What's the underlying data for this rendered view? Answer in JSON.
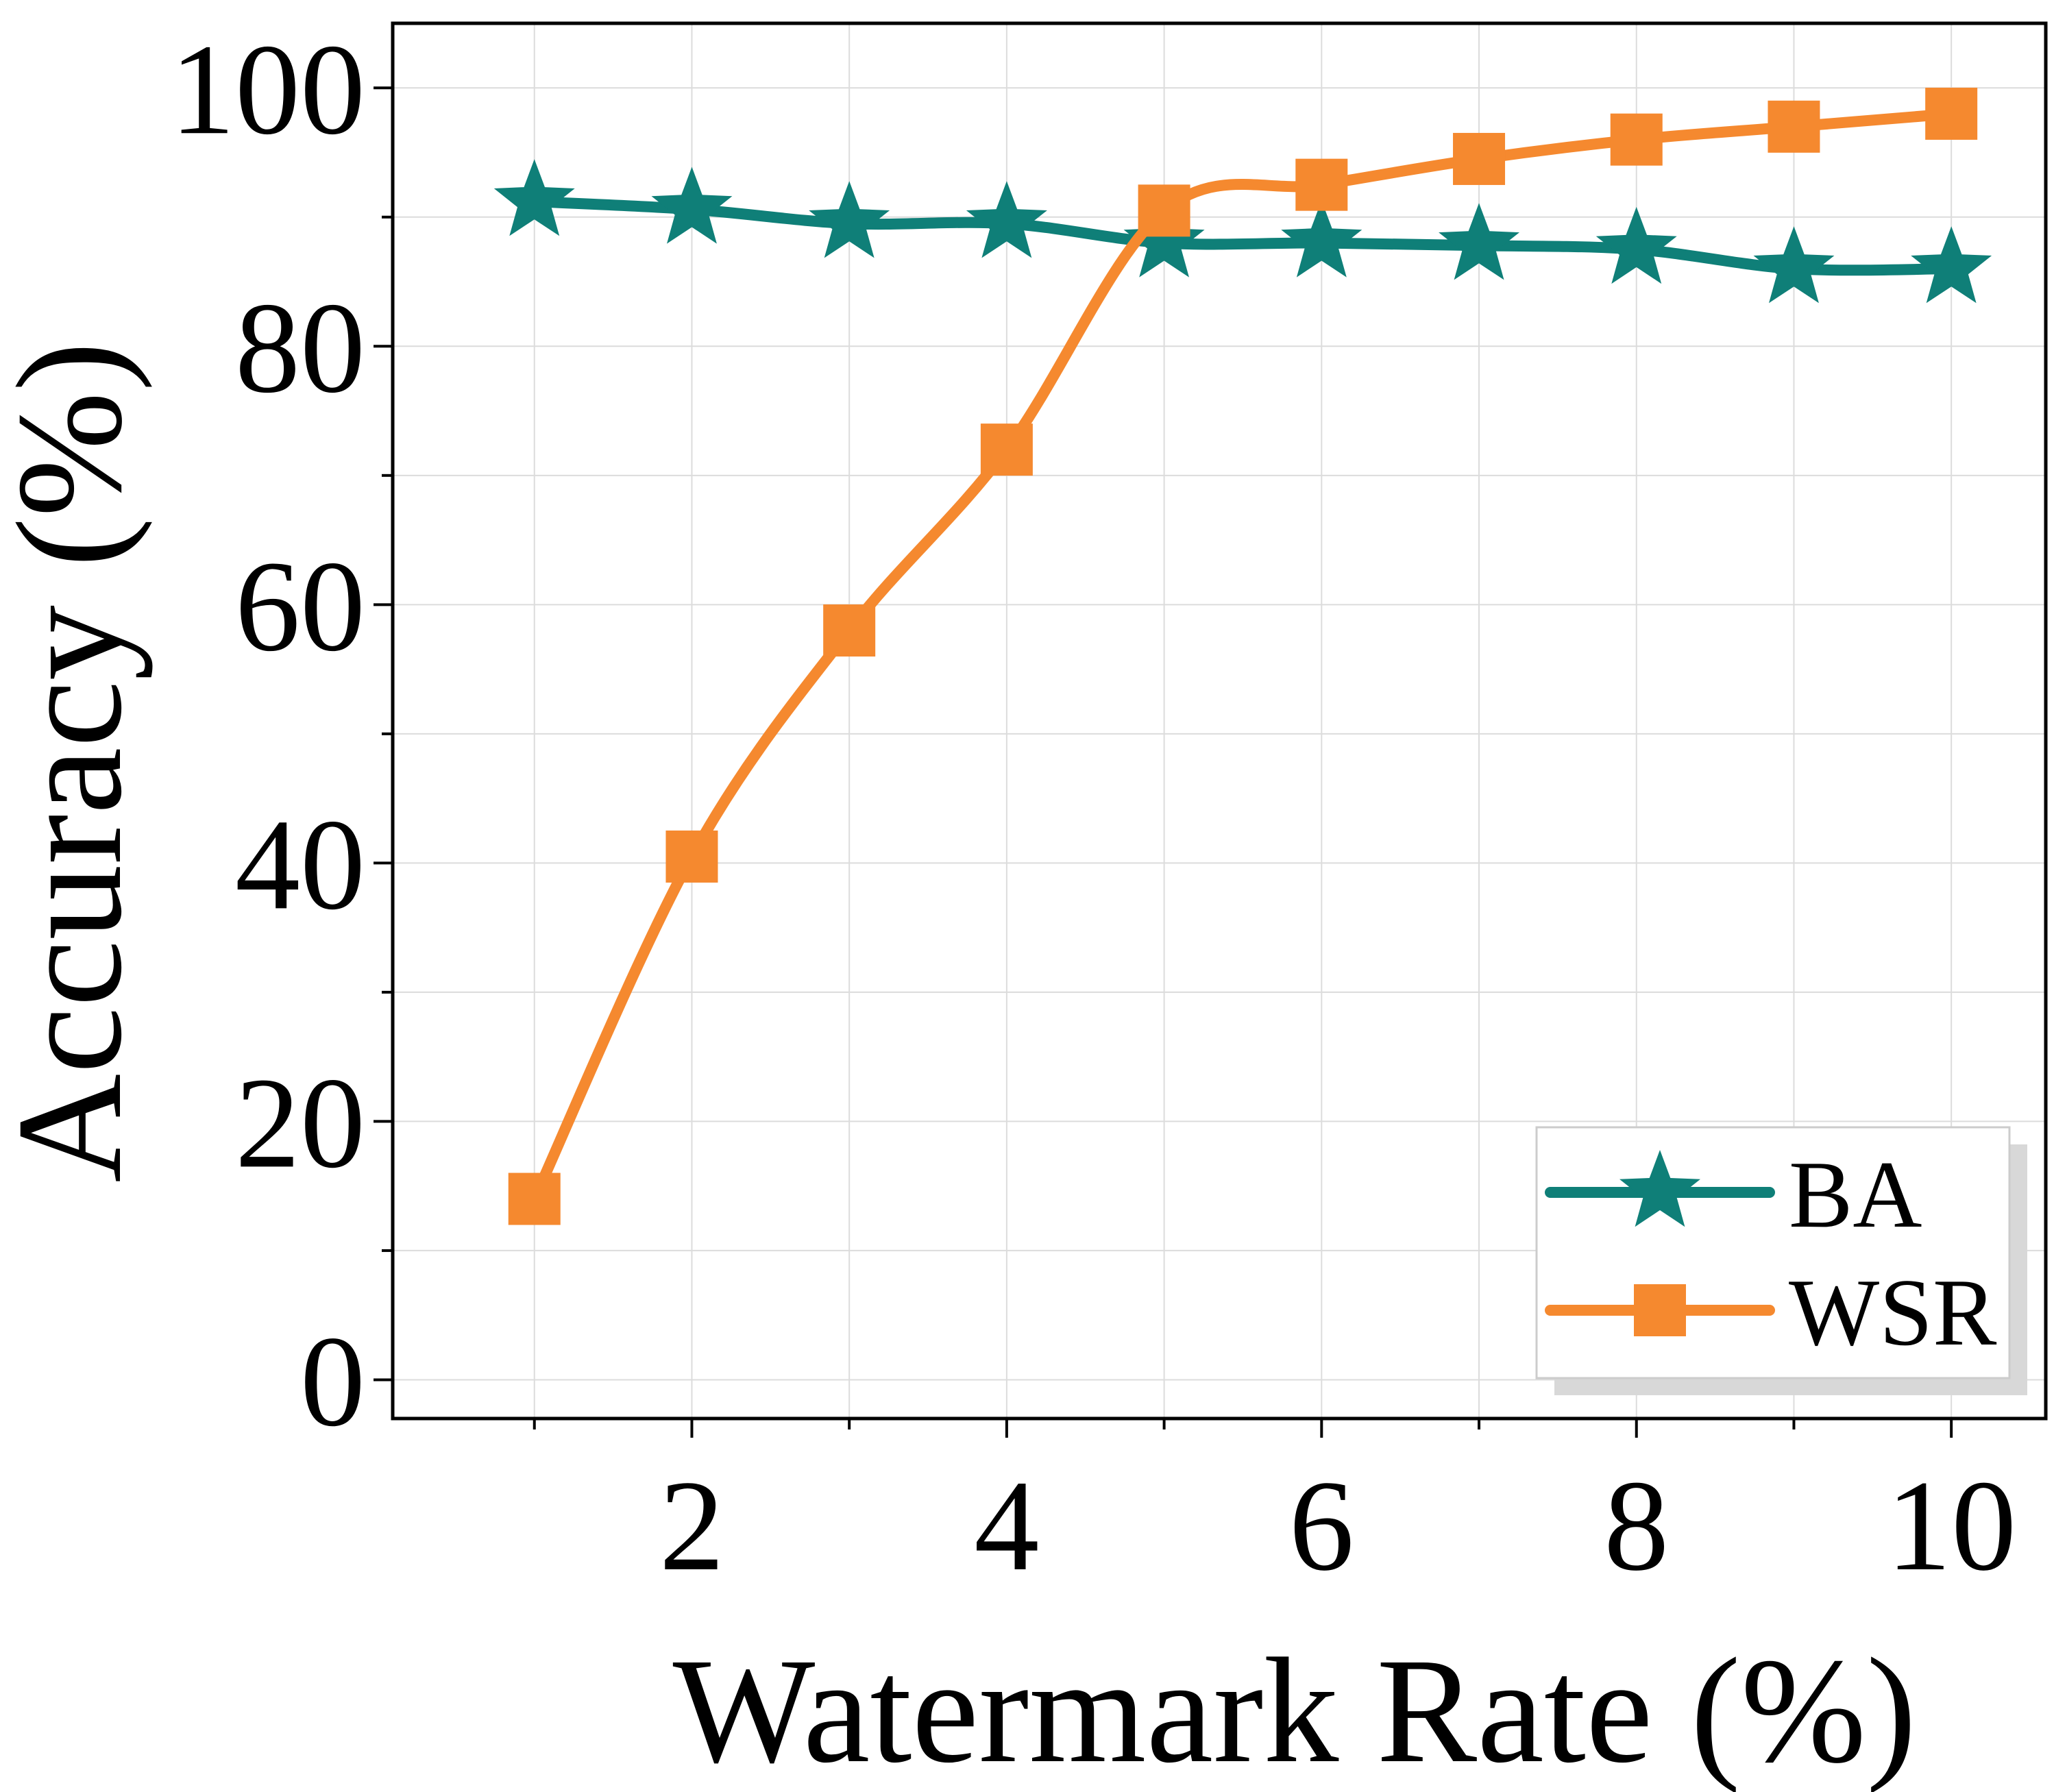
{
  "chart_data": {
    "type": "line",
    "title": "",
    "xlabel": "Watermark Rate (%)",
    "ylabel": "Accuracy (%)",
    "x": [
      1,
      2,
      3,
      4,
      5,
      6,
      7,
      8,
      9,
      10
    ],
    "xlim": [
      0.1,
      10.6
    ],
    "ylim": [
      -3,
      105
    ],
    "xticks": [
      2,
      4,
      6,
      8,
      10
    ],
    "xticks_minor": [
      1,
      3,
      5,
      7,
      9
    ],
    "yticks": [
      0,
      20,
      40,
      60,
      80,
      100
    ],
    "yticks_minor": [
      10,
      30,
      50,
      70,
      90
    ],
    "grid": true,
    "legend_position": "bottom-right",
    "series": [
      {
        "name": "BA",
        "marker": "star",
        "color": "#0f7f78",
        "values": [
          91.2,
          90.6,
          89.5,
          89.5,
          88.0,
          88.0,
          87.8,
          87.5,
          86.0,
          86.0
        ]
      },
      {
        "name": "WSR",
        "marker": "square",
        "color": "#f5892f",
        "values": [
          14.0,
          40.5,
          58.0,
          72.0,
          90.5,
          92.5,
          94.5,
          96.0,
          97.0,
          98.0
        ]
      }
    ]
  }
}
